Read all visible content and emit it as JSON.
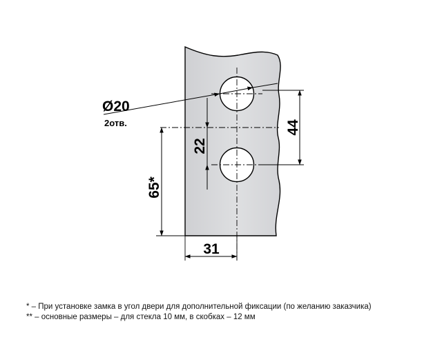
{
  "drawing": {
    "diameter_label": "Ø20",
    "holes_label": "2отв.",
    "dim_hole_spacing": "22",
    "dim_top_to_hole": "44",
    "dim_bottom_offset": "65*",
    "dim_edge_to_center": "31"
  },
  "notes": {
    "note_1": "* – При установке замка в угол двери для дополнительной фиксации (по желанию заказчика)",
    "note_2": "** – основные размеры – для стекла 10 мм, в скобках – 12 мм"
  },
  "colors": {
    "glass_fill": "#d7d8da",
    "line": "#000000"
  }
}
